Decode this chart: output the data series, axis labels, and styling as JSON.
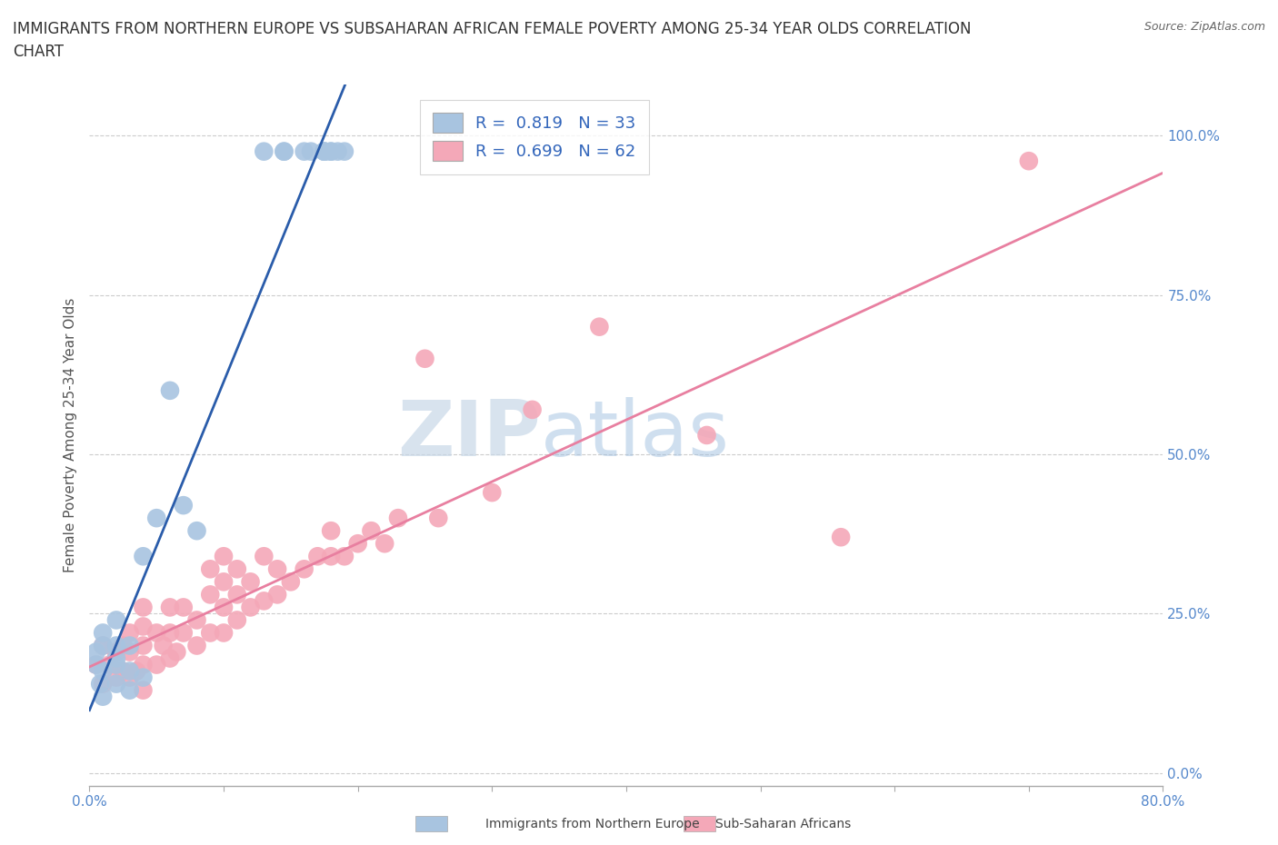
{
  "title_line1": "IMMIGRANTS FROM NORTHERN EUROPE VS SUBSAHARAN AFRICAN FEMALE POVERTY AMONG 25-34 YEAR OLDS CORRELATION",
  "title_line2": "CHART",
  "source": "Source: ZipAtlas.com",
  "ylabel": "Female Poverty Among 25-34 Year Olds",
  "xlabel_blue": "Immigrants from Northern Europe",
  "xlabel_pink": "Sub-Saharan Africans",
  "xlim": [
    0.0,
    0.8
  ],
  "ylim": [
    -0.02,
    1.08
  ],
  "yticks": [
    0.0,
    0.25,
    0.5,
    0.75,
    1.0
  ],
  "ytick_labels": [
    "0.0%",
    "25.0%",
    "50.0%",
    "75.0%",
    "100.0%"
  ],
  "blue_R": 0.819,
  "blue_N": 33,
  "pink_R": 0.699,
  "pink_N": 62,
  "blue_scatter_x": [
    0.005,
    0.005,
    0.008,
    0.01,
    0.01,
    0.01,
    0.01,
    0.02,
    0.02,
    0.02,
    0.02,
    0.02,
    0.03,
    0.03,
    0.03,
    0.04,
    0.04,
    0.05,
    0.06,
    0.07,
    0.08,
    0.13,
    0.145,
    0.145,
    0.16,
    0.165,
    0.175,
    0.175,
    0.175,
    0.18,
    0.18,
    0.185,
    0.19
  ],
  "blue_scatter_y": [
    0.17,
    0.19,
    0.14,
    0.12,
    0.16,
    0.2,
    0.22,
    0.14,
    0.17,
    0.18,
    0.2,
    0.24,
    0.13,
    0.16,
    0.2,
    0.15,
    0.34,
    0.4,
    0.6,
    0.42,
    0.38,
    0.975,
    0.975,
    0.975,
    0.975,
    0.975,
    0.975,
    0.975,
    0.975,
    0.975,
    0.975,
    0.975,
    0.975
  ],
  "pink_scatter_x": [
    0.005,
    0.01,
    0.01,
    0.015,
    0.02,
    0.02,
    0.025,
    0.025,
    0.03,
    0.03,
    0.03,
    0.035,
    0.04,
    0.04,
    0.04,
    0.04,
    0.04,
    0.05,
    0.05,
    0.055,
    0.06,
    0.06,
    0.06,
    0.065,
    0.07,
    0.07,
    0.08,
    0.08,
    0.09,
    0.09,
    0.09,
    0.1,
    0.1,
    0.1,
    0.1,
    0.11,
    0.11,
    0.11,
    0.12,
    0.12,
    0.13,
    0.13,
    0.14,
    0.14,
    0.15,
    0.16,
    0.17,
    0.18,
    0.18,
    0.19,
    0.2,
    0.21,
    0.22,
    0.23,
    0.25,
    0.26,
    0.3,
    0.33,
    0.38,
    0.46,
    0.56,
    0.7
  ],
  "pink_scatter_y": [
    0.17,
    0.14,
    0.2,
    0.17,
    0.15,
    0.19,
    0.16,
    0.2,
    0.15,
    0.19,
    0.22,
    0.16,
    0.13,
    0.17,
    0.2,
    0.23,
    0.26,
    0.17,
    0.22,
    0.2,
    0.18,
    0.22,
    0.26,
    0.19,
    0.22,
    0.26,
    0.2,
    0.24,
    0.22,
    0.28,
    0.32,
    0.22,
    0.26,
    0.3,
    0.34,
    0.24,
    0.28,
    0.32,
    0.26,
    0.3,
    0.27,
    0.34,
    0.28,
    0.32,
    0.3,
    0.32,
    0.34,
    0.34,
    0.38,
    0.34,
    0.36,
    0.38,
    0.36,
    0.4,
    0.65,
    0.4,
    0.44,
    0.57,
    0.7,
    0.53,
    0.37,
    0.96
  ],
  "blue_color": "#a8c4e0",
  "pink_color": "#f4a8b8",
  "blue_line_color": "#2a5caa",
  "pink_line_color": "#e87fa0",
  "watermark_zip": "ZIP",
  "watermark_atlas": "atlas",
  "watermark_color_zip": "#c8d8e8",
  "watermark_color_atlas": "#a0b8d0",
  "title_fontsize": 12,
  "axis_label_fontsize": 11,
  "tick_fontsize": 11,
  "legend_fontsize": 13,
  "background_color": "#ffffff",
  "grid_color": "#cccccc"
}
